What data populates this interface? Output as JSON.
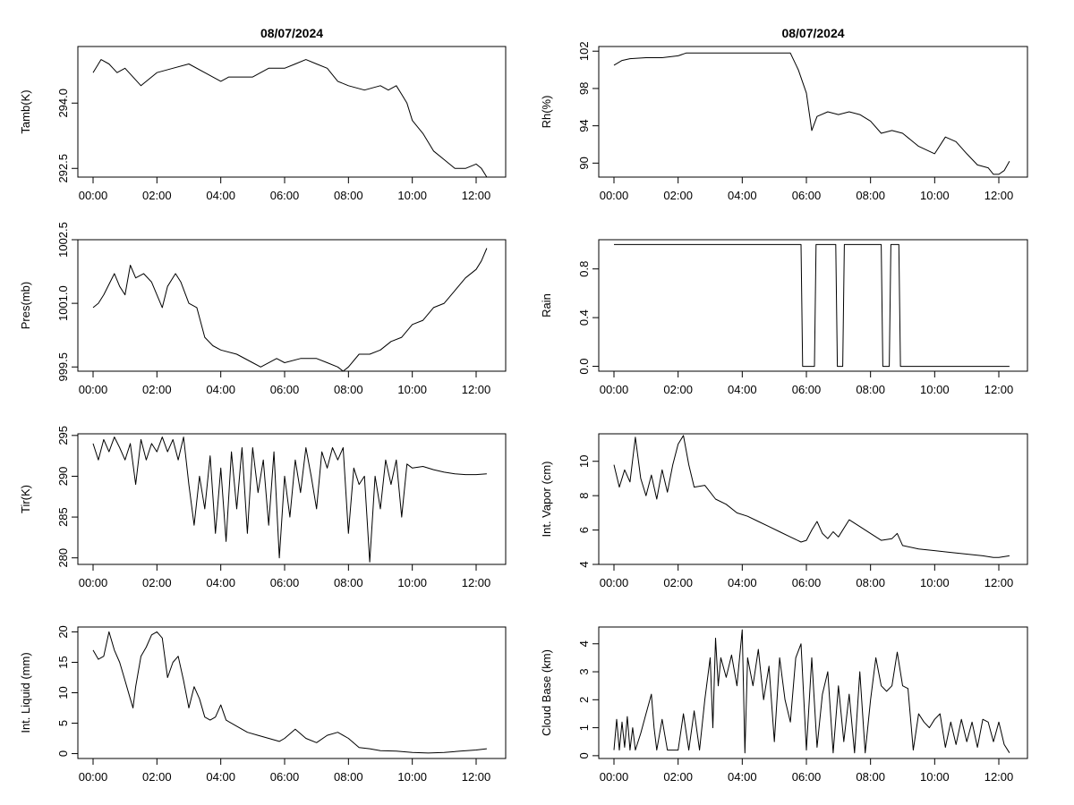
{
  "colors": {
    "background": "#ffffff",
    "line": "#000000"
  },
  "chart_data": [
    {
      "type": "line",
      "title": "08/07/2024",
      "ylabel": "Tamb(K)",
      "xlim": [
        "00:00",
        "12:30"
      ],
      "ylim": [
        292.3,
        295.3
      ],
      "xticks": [
        "00:00",
        "02:00",
        "04:00",
        "06:00",
        "08:00",
        "10:00",
        "12:00"
      ],
      "yticks": [
        "292.5",
        "294.0"
      ],
      "series": [
        {
          "x": [
            "00:00",
            "00:15",
            "00:30",
            "00:45",
            "01:00",
            "01:15",
            "01:30",
            "02:00",
            "02:30",
            "03:00",
            "03:30",
            "04:00",
            "04:15",
            "05:00",
            "05:30",
            "06:00",
            "06:20",
            "06:40",
            "07:00",
            "07:20",
            "07:40",
            "08:00",
            "08:30",
            "09:00",
            "09:15",
            "09:30",
            "09:40",
            "09:50",
            "10:00",
            "10:20",
            "10:40",
            "11:00",
            "11:20",
            "11:40",
            "12:00",
            "12:10",
            "12:20"
          ],
          "y": [
            294.7,
            295.0,
            294.9,
            294.7,
            294.8,
            294.6,
            294.4,
            294.7,
            294.8,
            294.9,
            294.7,
            294.5,
            294.6,
            294.6,
            294.8,
            294.8,
            294.9,
            295.0,
            294.9,
            294.8,
            294.5,
            294.4,
            294.3,
            294.4,
            294.3,
            294.4,
            294.2,
            294.0,
            293.6,
            293.3,
            292.9,
            292.7,
            292.5,
            292.5,
            292.6,
            292.5,
            292.3
          ]
        }
      ]
    },
    {
      "type": "line",
      "title": "08/07/2024",
      "ylabel": "Rh(%)",
      "xlim": [
        "00:00",
        "12:30"
      ],
      "ylim": [
        88.5,
        102.5
      ],
      "xticks": [
        "00:00",
        "02:00",
        "04:00",
        "06:00",
        "08:00",
        "10:00",
        "12:00"
      ],
      "yticks": [
        "90",
        "94",
        "98",
        "102"
      ],
      "series": [
        {
          "x": [
            "00:00",
            "00:15",
            "00:30",
            "01:00",
            "01:30",
            "02:00",
            "02:15",
            "03:00",
            "04:00",
            "05:00",
            "05:30",
            "05:45",
            "06:00",
            "06:10",
            "06:20",
            "06:40",
            "07:00",
            "07:20",
            "07:40",
            "08:00",
            "08:20",
            "08:40",
            "09:00",
            "09:30",
            "10:00",
            "10:20",
            "10:40",
            "11:00",
            "11:20",
            "11:40",
            "11:50",
            "12:00",
            "12:10",
            "12:20"
          ],
          "y": [
            100.5,
            101.0,
            101.2,
            101.3,
            101.3,
            101.5,
            101.8,
            101.8,
            101.8,
            101.8,
            101.8,
            100.0,
            97.5,
            93.5,
            95.0,
            95.5,
            95.2,
            95.5,
            95.2,
            94.5,
            93.2,
            93.5,
            93.2,
            91.8,
            91.0,
            92.8,
            92.3,
            91.0,
            89.8,
            89.5,
            88.8,
            88.8,
            89.2,
            90.2
          ]
        }
      ]
    },
    {
      "type": "line",
      "title": "",
      "ylabel": "Pres(mb)",
      "xlim": [
        "00:00",
        "12:30"
      ],
      "ylim": [
        999.4,
        1002.5
      ],
      "xticks": [
        "00:00",
        "02:00",
        "04:00",
        "06:00",
        "08:00",
        "10:00",
        "12:00"
      ],
      "yticks": [
        "999.5",
        "1001.0",
        "1002.5"
      ],
      "series": [
        {
          "x": [
            "00:00",
            "00:10",
            "00:20",
            "00:40",
            "00:50",
            "01:00",
            "01:10",
            "01:20",
            "01:35",
            "01:50",
            "02:00",
            "02:10",
            "02:20",
            "02:35",
            "02:45",
            "03:00",
            "03:15",
            "03:30",
            "03:45",
            "04:00",
            "04:30",
            "05:00",
            "05:15",
            "05:45",
            "06:00",
            "06:30",
            "07:00",
            "07:20",
            "07:40",
            "07:50",
            "08:00",
            "08:20",
            "08:40",
            "09:00",
            "09:20",
            "09:40",
            "10:00",
            "10:20",
            "10:40",
            "11:00",
            "11:20",
            "11:40",
            "12:00",
            "12:10",
            "12:20"
          ],
          "y": [
            1000.9,
            1001.0,
            1001.2,
            1001.7,
            1001.4,
            1001.2,
            1001.9,
            1001.6,
            1001.7,
            1001.5,
            1001.2,
            1000.9,
            1001.4,
            1001.7,
            1001.5,
            1001.0,
            1000.9,
            1000.2,
            1000.0,
            999.9,
            999.8,
            999.6,
            999.5,
            999.7,
            999.6,
            999.7,
            999.7,
            999.6,
            999.5,
            999.4,
            999.5,
            999.8,
            999.8,
            999.9,
            1000.1,
            1000.2,
            1000.5,
            1000.6,
            1000.9,
            1001.0,
            1001.3,
            1001.6,
            1001.8,
            1002.0,
            1002.3
          ]
        }
      ]
    },
    {
      "type": "line",
      "title": "",
      "ylabel": "Rain",
      "xlim": [
        "00:00",
        "12:30"
      ],
      "ylim": [
        -0.04,
        1.04
      ],
      "xticks": [
        "00:00",
        "02:00",
        "04:00",
        "06:00",
        "08:00",
        "10:00",
        "12:00"
      ],
      "yticks": [
        "0.0",
        "0.4",
        "0.8"
      ],
      "series": [
        {
          "x": [
            "00:00",
            "05:50",
            "05:53",
            "06:15",
            "06:18",
            "06:55",
            "06:58",
            "07:08",
            "07:11",
            "08:20",
            "08:23",
            "08:35",
            "08:38",
            "08:53",
            "08:56",
            "12:20"
          ],
          "y": [
            1,
            1,
            0,
            0,
            1,
            1,
            0,
            0,
            1,
            1,
            0,
            0,
            1,
            1,
            0,
            0
          ]
        }
      ]
    },
    {
      "type": "line",
      "title": "",
      "ylabel": "Tir(K)",
      "xlim": [
        "00:00",
        "12:30"
      ],
      "ylim": [
        279.2,
        295.2
      ],
      "xticks": [
        "00:00",
        "02:00",
        "04:00",
        "06:00",
        "08:00",
        "10:00",
        "12:00"
      ],
      "yticks": [
        "280",
        "285",
        "290",
        "295"
      ],
      "series": [
        {
          "x": [
            "00:00",
            "00:10",
            "00:20",
            "00:30",
            "00:40",
            "00:50",
            "01:00",
            "01:10",
            "01:20",
            "01:30",
            "01:40",
            "01:50",
            "02:00",
            "02:10",
            "02:20",
            "02:30",
            "02:40",
            "02:50",
            "03:00",
            "03:10",
            "03:20",
            "03:30",
            "03:40",
            "03:50",
            "04:00",
            "04:10",
            "04:20",
            "04:30",
            "04:40",
            "04:50",
            "05:00",
            "05:10",
            "05:20",
            "05:30",
            "05:40",
            "05:50",
            "06:00",
            "06:10",
            "06:20",
            "06:30",
            "06:40",
            "06:50",
            "07:00",
            "07:10",
            "07:20",
            "07:30",
            "07:40",
            "07:50",
            "08:00",
            "08:10",
            "08:20",
            "08:30",
            "08:40",
            "08:50",
            "09:00",
            "09:10",
            "09:20",
            "09:30",
            "09:40",
            "09:50",
            "10:00",
            "10:20",
            "10:40",
            "11:00",
            "11:20",
            "11:40",
            "12:00",
            "12:20"
          ],
          "y": [
            294.0,
            292.0,
            294.5,
            293.0,
            294.8,
            293.5,
            292.0,
            294.0,
            289.0,
            294.5,
            292.0,
            294.0,
            293.0,
            294.8,
            293.0,
            294.5,
            292.0,
            294.8,
            289.0,
            284.0,
            290.0,
            286.0,
            292.5,
            283.0,
            291.0,
            282.0,
            293.0,
            286.0,
            293.5,
            283.0,
            293.5,
            288.0,
            292.0,
            284.0,
            293.0,
            280.0,
            290.0,
            285.0,
            292.0,
            288.0,
            293.5,
            290.0,
            286.0,
            293.0,
            291.0,
            293.5,
            292.0,
            293.5,
            283.0,
            291.0,
            289.0,
            290.0,
            279.5,
            290.0,
            286.0,
            292.0,
            289.0,
            292.0,
            285.0,
            291.5,
            291.0,
            291.2,
            290.8,
            290.5,
            290.3,
            290.2,
            290.2,
            290.3
          ]
        }
      ]
    },
    {
      "type": "line",
      "title": "",
      "ylabel": "Int. Vapor (cm)",
      "xlim": [
        "00:00",
        "12:30"
      ],
      "ylim": [
        4.0,
        11.6
      ],
      "xticks": [
        "00:00",
        "02:00",
        "04:00",
        "06:00",
        "08:00",
        "10:00",
        "12:00"
      ],
      "yticks": [
        "4",
        "6",
        "8",
        "10"
      ],
      "series": [
        {
          "x": [
            "00:00",
            "00:10",
            "00:20",
            "00:30",
            "00:40",
            "00:50",
            "01:00",
            "01:10",
            "01:20",
            "01:30",
            "01:40",
            "01:50",
            "02:00",
            "02:10",
            "02:20",
            "02:30",
            "02:50",
            "03:10",
            "03:30",
            "03:50",
            "04:10",
            "04:30",
            "04:50",
            "05:10",
            "05:30",
            "05:50",
            "06:00",
            "06:10",
            "06:20",
            "06:30",
            "06:40",
            "06:50",
            "07:00",
            "07:20",
            "07:40",
            "08:00",
            "08:20",
            "08:40",
            "08:50",
            "09:00",
            "09:30",
            "10:00",
            "10:30",
            "11:00",
            "11:30",
            "11:50",
            "12:00",
            "12:20"
          ],
          "y": [
            9.8,
            8.5,
            9.5,
            8.8,
            11.4,
            9.0,
            8.0,
            9.2,
            7.8,
            9.5,
            8.2,
            9.8,
            11.0,
            11.5,
            9.8,
            8.5,
            8.6,
            7.8,
            7.5,
            7.0,
            6.8,
            6.5,
            6.2,
            5.9,
            5.6,
            5.3,
            5.4,
            6.0,
            6.5,
            5.8,
            5.5,
            5.9,
            5.6,
            6.6,
            6.2,
            5.8,
            5.4,
            5.5,
            5.8,
            5.1,
            4.9,
            4.8,
            4.7,
            4.6,
            4.5,
            4.4,
            4.4,
            4.5
          ]
        }
      ]
    },
    {
      "type": "line",
      "title": "",
      "ylabel": "Int. Liquid (mm)",
      "xlim": [
        "00:00",
        "12:30"
      ],
      "ylim": [
        -0.8,
        20.8
      ],
      "xticks": [
        "00:00",
        "02:00",
        "04:00",
        "06:00",
        "08:00",
        "10:00",
        "12:00"
      ],
      "yticks": [
        "0",
        "5",
        "10",
        "15",
        "20"
      ],
      "series": [
        {
          "x": [
            "00:00",
            "00:10",
            "00:20",
            "00:30",
            "00:40",
            "00:50",
            "01:00",
            "01:10",
            "01:15",
            "01:20",
            "01:30",
            "01:40",
            "01:50",
            "02:00",
            "02:10",
            "02:20",
            "02:30",
            "02:40",
            "02:50",
            "03:00",
            "03:10",
            "03:20",
            "03:30",
            "03:40",
            "03:50",
            "04:00",
            "04:10",
            "04:30",
            "04:50",
            "05:10",
            "05:30",
            "05:50",
            "06:00",
            "06:20",
            "06:40",
            "07:00",
            "07:20",
            "07:40",
            "08:00",
            "08:20",
            "08:40",
            "09:00",
            "09:30",
            "10:00",
            "10:30",
            "11:00",
            "11:30",
            "12:00",
            "12:20"
          ],
          "y": [
            17.0,
            15.5,
            16.0,
            20.0,
            17.0,
            15.0,
            12.0,
            9.0,
            7.5,
            11.0,
            16.0,
            17.5,
            19.5,
            20.0,
            19.0,
            12.5,
            15.0,
            16.0,
            12.0,
            7.5,
            11.0,
            9.0,
            6.0,
            5.5,
            6.0,
            8.0,
            5.5,
            4.5,
            3.5,
            3.0,
            2.5,
            2.0,
            2.5,
            4.0,
            2.5,
            1.8,
            3.0,
            3.5,
            2.5,
            1.0,
            0.8,
            0.5,
            0.4,
            0.2,
            0.1,
            0.2,
            0.4,
            0.6,
            0.8
          ]
        }
      ]
    },
    {
      "type": "line",
      "title": "",
      "ylabel": "Cloud Base (km)",
      "xlim": [
        "00:00",
        "12:30"
      ],
      "ylim": [
        -0.1,
        4.6
      ],
      "xticks": [
        "00:00",
        "02:00",
        "04:00",
        "06:00",
        "08:00",
        "10:00",
        "12:00"
      ],
      "yticks": [
        "0",
        "1",
        "2",
        "3",
        "4"
      ],
      "series": [
        {
          "x": [
            "00:00",
            "00:05",
            "00:10",
            "00:15",
            "00:20",
            "00:25",
            "00:30",
            "00:35",
            "00:40",
            "00:50",
            "01:00",
            "01:10",
            "01:15",
            "01:20",
            "01:30",
            "01:40",
            "01:50",
            "02:00",
            "02:10",
            "02:20",
            "02:30",
            "02:40",
            "02:50",
            "03:00",
            "03:05",
            "03:10",
            "03:15",
            "03:20",
            "03:30",
            "03:40",
            "03:50",
            "04:00",
            "04:05",
            "04:10",
            "04:20",
            "04:30",
            "04:40",
            "04:50",
            "05:00",
            "05:10",
            "05:20",
            "05:30",
            "05:40",
            "05:50",
            "06:00",
            "06:10",
            "06:20",
            "06:30",
            "06:40",
            "06:50",
            "07:00",
            "07:10",
            "07:20",
            "07:30",
            "07:40",
            "07:50",
            "08:00",
            "08:10",
            "08:20",
            "08:30",
            "08:40",
            "08:50",
            "09:00",
            "09:10",
            "09:20",
            "09:30",
            "09:40",
            "09:50",
            "10:00",
            "10:10",
            "10:20",
            "10:30",
            "10:40",
            "10:50",
            "11:00",
            "11:10",
            "11:20",
            "11:30",
            "11:40",
            "11:50",
            "12:00",
            "12:10",
            "12:20"
          ],
          "y": [
            0.2,
            1.3,
            0.2,
            1.2,
            0.3,
            1.4,
            0.2,
            1.0,
            0.2,
            0.8,
            1.5,
            2.2,
            1.0,
            0.2,
            1.3,
            0.2,
            0.2,
            0.2,
            1.5,
            0.2,
            1.6,
            0.2,
            2.0,
            3.5,
            1.0,
            4.2,
            2.5,
            3.5,
            2.8,
            3.6,
            2.5,
            4.5,
            0.1,
            3.5,
            2.5,
            3.8,
            2.0,
            3.2,
            0.5,
            3.5,
            2.0,
            1.2,
            3.5,
            4.0,
            0.2,
            3.5,
            0.3,
            2.2,
            3.0,
            0.1,
            2.5,
            0.5,
            2.2,
            0.1,
            3.0,
            0.1,
            2.0,
            3.5,
            2.5,
            2.3,
            2.5,
            3.7,
            2.5,
            2.4,
            0.2,
            1.5,
            1.2,
            1.0,
            1.3,
            1.5,
            0.3,
            1.2,
            0.4,
            1.3,
            0.5,
            1.2,
            0.3,
            1.3,
            1.2,
            0.5,
            1.2,
            0.4,
            0.1
          ]
        }
      ]
    }
  ]
}
